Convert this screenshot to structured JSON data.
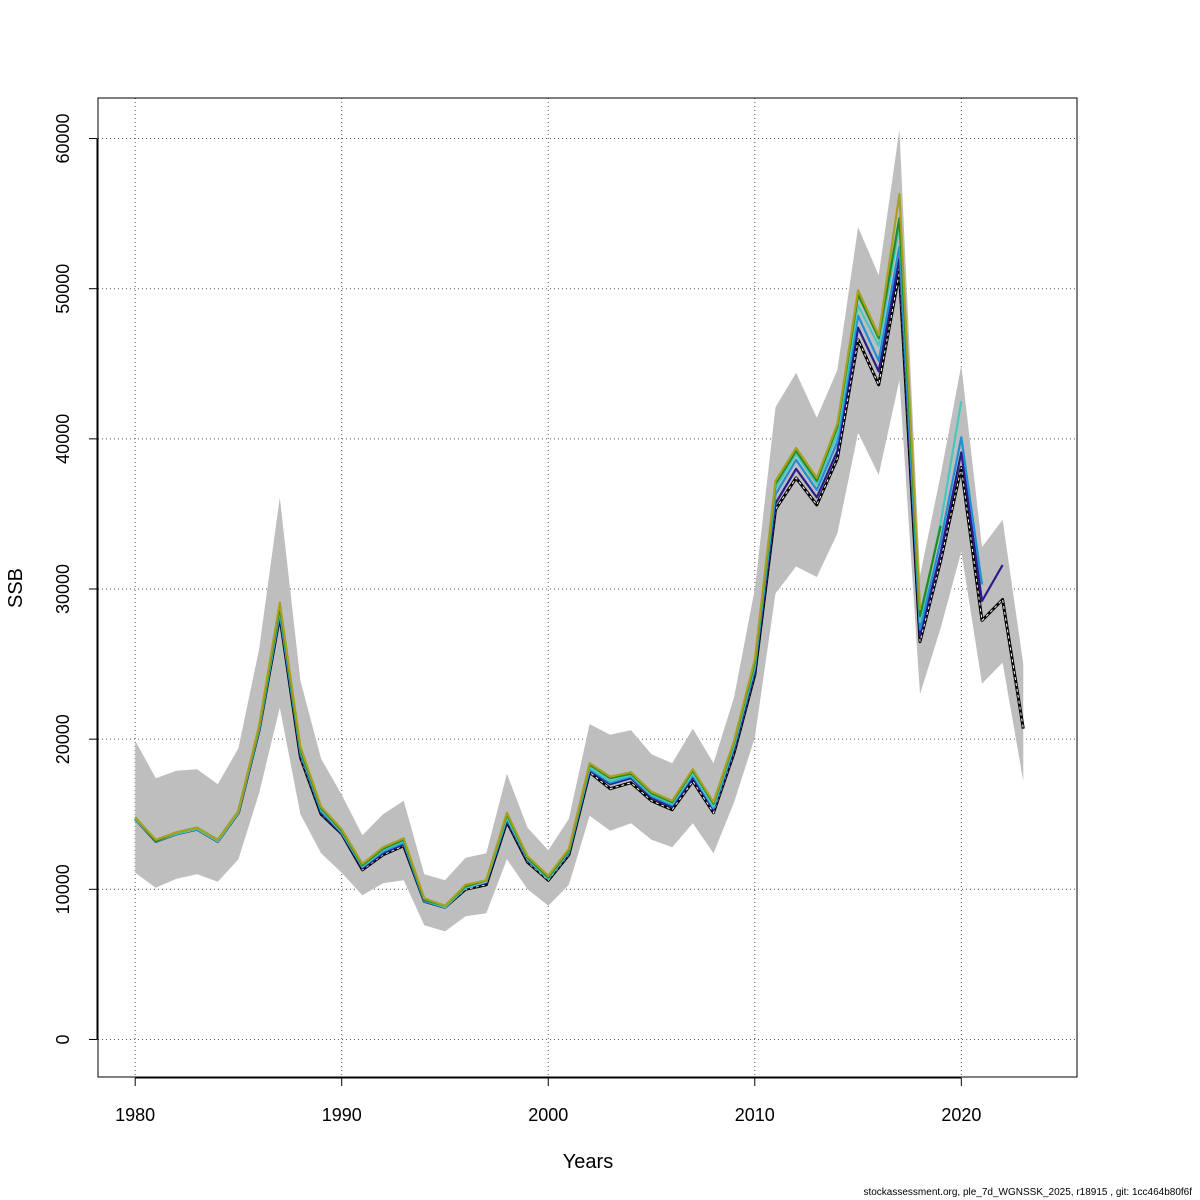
{
  "chart_data": {
    "type": "line",
    "xlabel": "Years",
    "ylabel": "SSB",
    "xlim": [
      1978.2,
      2025.6
    ],
    "ylim": [
      -2500,
      62700
    ],
    "xticks": [
      1980,
      1990,
      2000,
      2010,
      2020
    ],
    "yticks": [
      0,
      10000,
      20000,
      30000,
      40000,
      50000,
      60000
    ],
    "grid": true,
    "confidence_band": {
      "color": "#bebebe",
      "x": [
        1980,
        1981,
        1982,
        1983,
        1984,
        1985,
        1986,
        1987,
        1988,
        1989,
        1990,
        1991,
        1992,
        1993,
        1994,
        1995,
        1996,
        1997,
        1998,
        1999,
        2000,
        2001,
        2002,
        2003,
        2004,
        2005,
        2006,
        2007,
        2008,
        2009,
        2010,
        2011,
        2012,
        2013,
        2014,
        2015,
        2016,
        2017,
        2018,
        2019,
        2020,
        2021,
        2022,
        2023
      ],
      "upper": [
        19900,
        17400,
        17900,
        18000,
        17000,
        19400,
        26000,
        36100,
        23900,
        18700,
        16300,
        13600,
        15000,
        15900,
        11000,
        10600,
        12100,
        12400,
        17700,
        14100,
        12600,
        14700,
        21000,
        20300,
        20600,
        19000,
        18400,
        20700,
        18400,
        22800,
        30000,
        42100,
        44400,
        41400,
        44600,
        54100,
        50900,
        60600,
        30900,
        37600,
        44900,
        32800,
        34600,
        25000
      ],
      "lower": [
        11100,
        10100,
        10700,
        11000,
        10500,
        12000,
        16400,
        22100,
        15000,
        12400,
        11100,
        9600,
        10400,
        10600,
        7600,
        7200,
        8200,
        8400,
        12000,
        10000,
        8900,
        10300,
        14900,
        13900,
        14400,
        13300,
        12800,
        14400,
        12400,
        15800,
        20100,
        29700,
        31500,
        30800,
        33700,
        40400,
        37600,
        43900,
        23000,
        27400,
        32500,
        23700,
        25100,
        17200
      ]
    },
    "series": [
      {
        "name": "",
        "color": "#000000",
        "dashed_overlay": "#ffffff",
        "x": [
          1980,
          1981,
          1982,
          1983,
          1984,
          1985,
          1986,
          1987,
          1988,
          1989,
          1990,
          1991,
          1992,
          1993,
          1994,
          1995,
          1996,
          1997,
          1998,
          1999,
          2000,
          2001,
          2002,
          2003,
          2004,
          2005,
          2006,
          2007,
          2008,
          2009,
          2010,
          2011,
          2012,
          2013,
          2014,
          2015,
          2016,
          2017,
          2018,
          2019,
          2020,
          2021,
          2022,
          2023
        ],
        "values": [
          14700,
          13200,
          13700,
          14000,
          13200,
          15100,
          20600,
          28200,
          18800,
          15000,
          13700,
          11300,
          12300,
          12900,
          9200,
          8800,
          10000,
          10300,
          14500,
          11800,
          10600,
          12300,
          17800,
          16700,
          17100,
          15900,
          15300,
          17200,
          15100,
          19100,
          24300,
          35300,
          37400,
          35600,
          38700,
          46600,
          43600,
          51100,
          26500,
          31900,
          38100,
          27900,
          29300,
          20700
        ]
      },
      {
        "name": "",
        "color": "#2b1a8c",
        "x": [
          1980,
          1981,
          1982,
          1983,
          1984,
          1985,
          1986,
          1987,
          1988,
          1989,
          1990,
          1991,
          1992,
          1993,
          1994,
          1995,
          1996,
          1997,
          1998,
          1999,
          2000,
          2001,
          2002,
          2003,
          2004,
          2005,
          2006,
          2007,
          2008,
          2009,
          2010,
          2011,
          2012,
          2013,
          2014,
          2015,
          2016,
          2017,
          2018,
          2019,
          2020,
          2021,
          2022
        ],
        "values": [
          14700,
          13200,
          13700,
          14000,
          13200,
          15100,
          20600,
          28300,
          19000,
          15100,
          13700,
          11400,
          12400,
          13000,
          9200,
          8800,
          10100,
          10400,
          14600,
          11900,
          10700,
          12400,
          17900,
          17000,
          17400,
          16100,
          15500,
          17400,
          15300,
          19300,
          24500,
          35700,
          38000,
          36100,
          39200,
          47400,
          44500,
          52000,
          26900,
          32400,
          39100,
          29200,
          31600
        ]
      },
      {
        "name": "",
        "color": "#1f8fd6",
        "x": [
          1980,
          1981,
          1982,
          1983,
          1984,
          1985,
          1986,
          1987,
          1988,
          1989,
          1990,
          1991,
          1992,
          1993,
          1994,
          1995,
          1996,
          1997,
          1998,
          1999,
          2000,
          2001,
          2002,
          2003,
          2004,
          2005,
          2006,
          2007,
          2008,
          2009,
          2010,
          2011,
          2012,
          2013,
          2014,
          2015,
          2016,
          2017,
          2018,
          2019,
          2020,
          2021
        ],
        "values": [
          14700,
          13200,
          13700,
          14000,
          13200,
          15100,
          20600,
          28400,
          19100,
          15200,
          13800,
          11500,
          12500,
          13100,
          9200,
          8800,
          10100,
          10500,
          14700,
          12000,
          10700,
          12500,
          18000,
          17100,
          17500,
          16200,
          15600,
          17600,
          15400,
          19500,
          24700,
          36300,
          38600,
          36600,
          39800,
          48200,
          45200,
          52800,
          27300,
          33200,
          40100,
          30300
        ]
      },
      {
        "name": "",
        "color": "#48c8bd",
        "x": [
          1980,
          1981,
          1982,
          1983,
          1984,
          1985,
          1986,
          1987,
          1988,
          1989,
          1990,
          1991,
          1992,
          1993,
          1994,
          1995,
          1996,
          1997,
          1998,
          1999,
          2000,
          2001,
          2002,
          2003,
          2004,
          2005,
          2006,
          2007,
          2008,
          2009,
          2010,
          2011,
          2012,
          2013,
          2014,
          2015,
          2016,
          2017,
          2018,
          2019,
          2020
        ],
        "values": [
          14700,
          13200,
          13700,
          14000,
          13200,
          15100,
          20700,
          28600,
          19200,
          15300,
          13800,
          11500,
          12600,
          13200,
          9300,
          8800,
          10100,
          10500,
          14800,
          12000,
          10700,
          12500,
          18100,
          17200,
          17600,
          16300,
          15700,
          17700,
          15500,
          19600,
          24900,
          36700,
          39000,
          37000,
          40300,
          48900,
          46200,
          54200,
          27800,
          34400,
          42500
        ]
      },
      {
        "name": "",
        "color": "#228b22",
        "x": [
          1980,
          1981,
          1982,
          1983,
          1984,
          1985,
          1986,
          1987,
          1988,
          1989,
          1990,
          1991,
          1992,
          1993,
          1994,
          1995,
          1996,
          1997,
          1998,
          1999,
          2000,
          2001,
          2002,
          2003,
          2004,
          2005,
          2006,
          2007,
          2008,
          2009,
          2010,
          2011,
          2012,
          2013,
          2014,
          2015,
          2016,
          2017,
          2018,
          2019
        ],
        "values": [
          14800,
          13200,
          13800,
          14100,
          13300,
          15200,
          20800,
          28800,
          19300,
          15400,
          13900,
          11600,
          12700,
          13300,
          9300,
          8900,
          10200,
          10600,
          15000,
          12100,
          10800,
          12600,
          18300,
          17400,
          17700,
          16400,
          15800,
          17900,
          15700,
          19800,
          25100,
          37000,
          39200,
          37200,
          40800,
          49600,
          46700,
          54700,
          28200,
          34200
        ]
      },
      {
        "name": "",
        "color": "#a8a020",
        "x": [
          1980,
          1981,
          1982,
          1983,
          1984,
          1985,
          1986,
          1987,
          1988,
          1989,
          1990,
          1991,
          1992,
          1993,
          1994,
          1995,
          1996,
          1997,
          1998,
          1999,
          2000,
          2001,
          2002,
          2003,
          2004,
          2005,
          2006,
          2007,
          2008,
          2009,
          2010,
          2011,
          2012,
          2013,
          2014,
          2015,
          2016,
          2017,
          2018
        ],
        "values": [
          14800,
          13300,
          13800,
          14100,
          13300,
          15200,
          20900,
          29100,
          19500,
          15500,
          14000,
          11700,
          12800,
          13400,
          9400,
          8900,
          10300,
          10600,
          15100,
          12200,
          10900,
          12700,
          18400,
          17500,
          17800,
          16500,
          15900,
          18000,
          15800,
          19900,
          25300,
          37200,
          39400,
          37400,
          41000,
          49900,
          46900,
          56300,
          28600
        ]
      }
    ]
  },
  "footer": "stockassessment.org, ple_7d_WGNSSK_2025, r18915 , git: 1cc464b80f6f"
}
